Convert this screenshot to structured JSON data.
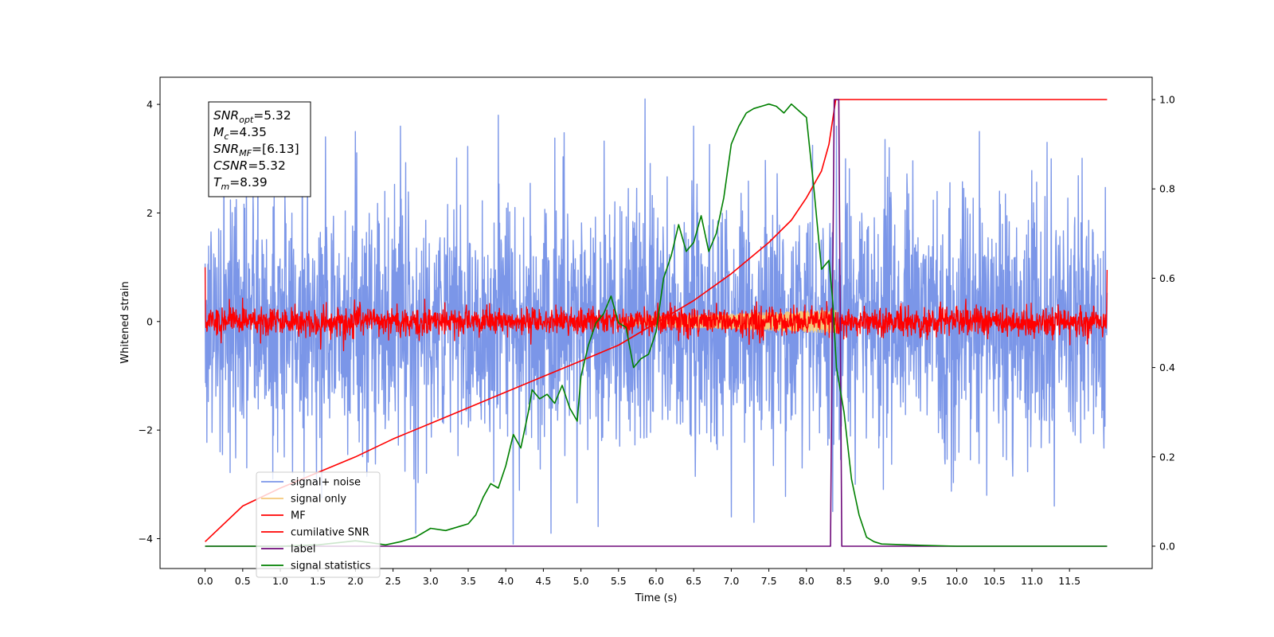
{
  "chart_data": {
    "type": "line",
    "xlabel": "Time (s)",
    "ylabel": "Whitened strain",
    "xlim": [
      -0.6,
      12.6
    ],
    "ylim": [
      -4.55,
      4.5
    ],
    "y2lim": [
      -0.05,
      1.05
    ],
    "x_ticks": [
      0.0,
      0.5,
      1.0,
      1.5,
      2.0,
      2.5,
      3.0,
      3.5,
      4.0,
      4.5,
      5.0,
      5.5,
      6.0,
      6.5,
      7.0,
      7.5,
      8.0,
      8.5,
      9.0,
      9.5,
      10.0,
      10.5,
      11.0,
      11.5
    ],
    "x_tick_labels": [
      "0.0",
      "0.5",
      "1.0",
      "1.5",
      "2.0",
      "2.5",
      "3.0",
      "3.5",
      "4.0",
      "4.5",
      "5.0",
      "5.5",
      "6.0",
      "6.5",
      "7.0",
      "7.5",
      "8.0",
      "8.5",
      "9.0",
      "9.5",
      "10.0",
      "10.5",
      "11.0",
      "11.5"
    ],
    "y_ticks": [
      -4,
      -2,
      0,
      2,
      4
    ],
    "y_tick_labels": [
      "−4",
      "−2",
      "0",
      "2",
      "4"
    ],
    "y2_ticks": [
      0.0,
      0.2,
      0.4,
      0.6,
      0.8,
      1.0
    ],
    "y2_tick_labels": [
      "0.0",
      "0.2",
      "0.4",
      "0.6",
      "0.8",
      "1.0"
    ],
    "grid": false,
    "legend_position": "bottom-left",
    "info_box": {
      "position": "top-left",
      "lines": [
        {
          "base": "SNR",
          "sub": "opt",
          "value": "=5.32"
        },
        {
          "base": "M",
          "sub": "c",
          "value": "=4.35"
        },
        {
          "base": "SNR",
          "sub": "MF",
          "value": "=[6.13]"
        },
        {
          "base": "CSNR",
          "sub": "",
          "value": "=5.32"
        },
        {
          "base": "T",
          "sub": "m",
          "value": "=8.39"
        }
      ]
    },
    "series": [
      {
        "name": "signal+ noise",
        "axis": "left",
        "color": "#7b96e8",
        "kind": "noise",
        "x_range": [
          0.0,
          12.0
        ],
        "center": 0.0,
        "sigma": 1.15,
        "peak_highs": [
          [
            0.25,
            3.3
          ],
          [
            0.7,
            3.1
          ],
          [
            1.6,
            3.4
          ],
          [
            2.0,
            3.5
          ],
          [
            2.6,
            3.6
          ],
          [
            3.9,
            3.8
          ],
          [
            5.85,
            4.1
          ],
          [
            6.5,
            3.6
          ],
          [
            8.4,
            3.6
          ],
          [
            10.3,
            3.5
          ],
          [
            11.2,
            3.3
          ]
        ],
        "peak_lows": [
          [
            0.2,
            -2.4
          ],
          [
            0.9,
            -2.9
          ],
          [
            2.8,
            -3.9
          ],
          [
            4.1,
            -4.1
          ],
          [
            4.6,
            -3.9
          ],
          [
            7.0,
            -3.6
          ],
          [
            7.3,
            -3.7
          ],
          [
            8.35,
            -3.5
          ],
          [
            8.65,
            -3.0
          ],
          [
            10.4,
            -3.2
          ],
          [
            11.3,
            -3.4
          ]
        ]
      },
      {
        "name": "signal only",
        "axis": "left",
        "color": "#f5c87a",
        "kind": "chirp",
        "x_range": [
          5.5,
          8.4
        ],
        "amplitude": 0.22
      },
      {
        "name": "MF",
        "axis": "left",
        "color": "#ff0000",
        "kind": "noise",
        "x_range": [
          0.0,
          12.0
        ],
        "center": 0.0,
        "sigma": 0.13,
        "endpoints": [
          [
            0.0,
            1.0
          ],
          [
            12.0,
            0.95
          ]
        ]
      },
      {
        "name": "cumilative SNR",
        "axis": "right",
        "color": "#ff0000",
        "kind": "line",
        "x": [
          0.0,
          0.5,
          1.0,
          1.5,
          2.0,
          2.5,
          3.0,
          3.5,
          4.0,
          4.5,
          5.0,
          5.5,
          6.0,
          6.5,
          7.0,
          7.5,
          7.8,
          8.0,
          8.2,
          8.3,
          8.39,
          9.0,
          10.0,
          11.0,
          12.0
        ],
        "y": [
          0.01,
          0.09,
          0.13,
          0.165,
          0.2,
          0.24,
          0.275,
          0.31,
          0.345,
          0.38,
          0.415,
          0.45,
          0.5,
          0.55,
          0.61,
          0.68,
          0.73,
          0.78,
          0.84,
          0.9,
          1.0,
          1.0,
          1.0,
          1.0,
          1.0
        ]
      },
      {
        "name": "label",
        "axis": "right",
        "color": "#6e0a7a",
        "kind": "line",
        "x": [
          0.0,
          8.32,
          8.37,
          8.43,
          8.47,
          12.0
        ],
        "y": [
          0.0,
          0.0,
          1.0,
          1.0,
          0.0,
          0.0
        ]
      },
      {
        "name": "signal statistics",
        "axis": "right",
        "color": "#008000",
        "kind": "line",
        "x": [
          0.0,
          0.5,
          1.0,
          1.5,
          2.0,
          2.2,
          2.4,
          2.6,
          2.8,
          3.0,
          3.2,
          3.4,
          3.5,
          3.6,
          3.7,
          3.8,
          3.9,
          4.0,
          4.1,
          4.2,
          4.3,
          4.35,
          4.45,
          4.55,
          4.65,
          4.75,
          4.85,
          4.95,
          5.0,
          5.1,
          5.2,
          5.3,
          5.4,
          5.5,
          5.6,
          5.7,
          5.8,
          5.9,
          6.0,
          6.1,
          6.2,
          6.3,
          6.4,
          6.5,
          6.6,
          6.7,
          6.8,
          6.9,
          7.0,
          7.1,
          7.2,
          7.3,
          7.4,
          7.5,
          7.6,
          7.7,
          7.8,
          7.9,
          8.0,
          8.1,
          8.2,
          8.3,
          8.35,
          8.4,
          8.5,
          8.6,
          8.7,
          8.8,
          8.9,
          9.0,
          9.5,
          10.0,
          11.0,
          12.0
        ],
        "y": [
          0.0,
          0.0,
          0.0,
          0.003,
          0.012,
          0.008,
          0.003,
          0.01,
          0.02,
          0.04,
          0.035,
          0.045,
          0.05,
          0.07,
          0.11,
          0.14,
          0.13,
          0.18,
          0.25,
          0.22,
          0.3,
          0.35,
          0.33,
          0.34,
          0.32,
          0.36,
          0.31,
          0.28,
          0.38,
          0.45,
          0.5,
          0.52,
          0.56,
          0.5,
          0.49,
          0.4,
          0.42,
          0.43,
          0.48,
          0.6,
          0.65,
          0.72,
          0.66,
          0.68,
          0.74,
          0.66,
          0.7,
          0.78,
          0.9,
          0.94,
          0.97,
          0.98,
          0.985,
          0.99,
          0.985,
          0.97,
          0.99,
          0.975,
          0.96,
          0.8,
          0.62,
          0.64,
          0.55,
          0.4,
          0.3,
          0.15,
          0.07,
          0.02,
          0.01,
          0.005,
          0.002,
          0.0,
          0.0,
          0.0
        ]
      }
    ]
  }
}
